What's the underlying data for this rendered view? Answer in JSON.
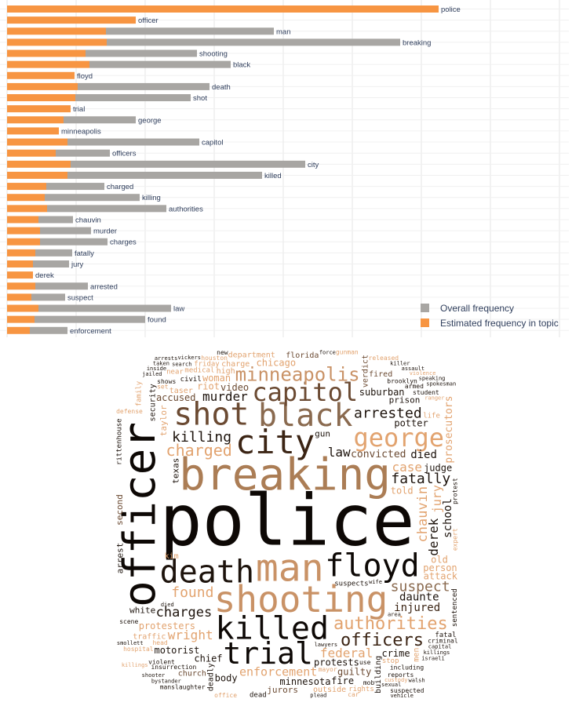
{
  "chart_data": [
    {
      "type": "bar",
      "orientation": "horizontal",
      "stacked": "overlay",
      "grid": true,
      "legend_position": "bottom-right",
      "categories": [
        "police",
        "officer",
        "man",
        "breaking",
        "shooting",
        "black",
        "floyd",
        "death",
        "shot",
        "trial",
        "george",
        "minneapolis",
        "capitol",
        "officers",
        "city",
        "killed",
        "charged",
        "killing",
        "authorities",
        "chauvin",
        "murder",
        "charges",
        "fatally",
        "jury",
        "derek",
        "arrested",
        "suspect",
        "law",
        "found",
        "enforcement"
      ],
      "series": [
        {
          "name": "Overall frequency",
          "color": "#a8a6a3",
          "values": [
            0,
            0,
            214,
            374,
            142,
            180,
            0,
            168,
            147,
            0,
            92,
            0,
            168,
            69,
            299,
            248,
            74,
            121,
            152,
            44,
            65,
            86,
            47,
            46,
            0,
            67,
            43,
            169,
            141,
            48
          ]
        },
        {
          "name": "Estimated frequency in topic",
          "color": "#f79542",
          "values": [
            550,
            164,
            126,
            127,
            100,
            105,
            86,
            90,
            87,
            81,
            72,
            66,
            77,
            62,
            81,
            77,
            50,
            48,
            51,
            40,
            42,
            42,
            36,
            33,
            33,
            36,
            31,
            40,
            35,
            29
          ]
        }
      ]
    },
    {
      "type": "wordcloud",
      "colors": [
        "#0d0805",
        "#3b2414",
        "#6b4a32",
        "#8a6a4f",
        "#ab7d55",
        "#c99266",
        "#e2a36f",
        "#f0b07a"
      ],
      "words": [
        {
          "text": "police",
          "size": 90,
          "color": "#0d0805"
        },
        {
          "text": "breaking",
          "size": 56,
          "color": "#ab7d55"
        },
        {
          "text": "officer",
          "size": 56,
          "color": "#0d0805",
          "rotate": true
        },
        {
          "text": "man",
          "size": 48,
          "color": "#c99266"
        },
        {
          "text": "shooting",
          "size": 46,
          "color": "#c99266"
        },
        {
          "text": "city",
          "size": 42,
          "color": "#3b2414"
        },
        {
          "text": "death",
          "size": 40,
          "color": "#1d130c"
        },
        {
          "text": "floyd",
          "size": 40,
          "color": "#0d0805"
        },
        {
          "text": "killed",
          "size": 40,
          "color": "#0d0805"
        },
        {
          "text": "black",
          "size": 40,
          "color": "#8a6a4f"
        },
        {
          "text": "shot",
          "size": 40,
          "color": "#6b4a32"
        },
        {
          "text": "trial",
          "size": 38,
          "color": "#0d0805"
        },
        {
          "text": "capitol",
          "size": 32,
          "color": "#6b4a32"
        },
        {
          "text": "george",
          "size": 32,
          "color": "#e2a36f"
        },
        {
          "text": "minneapolis",
          "size": 24,
          "color": "#c99266"
        },
        {
          "text": "authorities",
          "size": 22,
          "color": "#e2a36f"
        },
        {
          "text": "officers",
          "size": 22,
          "color": "#3b2414"
        },
        {
          "text": "charged",
          "size": 20,
          "color": "#e2a36f"
        },
        {
          "text": "arrested",
          "size": 18,
          "color": "#1d130c"
        },
        {
          "text": "killing",
          "size": 18,
          "color": "#1d130c"
        },
        {
          "text": "fatally",
          "size": 18,
          "color": "#1d130c"
        },
        {
          "text": "found",
          "size": 18,
          "color": "#e2a36f"
        },
        {
          "text": "suspect",
          "size": 18,
          "color": "#8a6a4f"
        },
        {
          "text": "charges",
          "size": 17,
          "color": "#1d130c"
        },
        {
          "text": "chauvin",
          "size": 17,
          "color": "#e2a36f",
          "rotate": true
        },
        {
          "text": "murder",
          "size": 16,
          "color": "#1d130c"
        },
        {
          "text": "enforcement",
          "size": 15,
          "color": "#e2a36f"
        },
        {
          "text": "federal",
          "size": 16,
          "color": "#e2a36f"
        },
        {
          "text": "wright",
          "size": 16,
          "color": "#e2a36f"
        },
        {
          "text": "law",
          "size": 16,
          "color": "#1d130c"
        },
        {
          "text": "case",
          "size": 16,
          "color": "#e2a36f"
        },
        {
          "text": "derek",
          "size": 16,
          "color": "#1d130c",
          "rotate": true
        },
        {
          "text": "jury",
          "size": 15,
          "color": "#e2a36f",
          "rotate": true
        },
        {
          "text": "daunte",
          "size": 14,
          "color": "#1d130c"
        },
        {
          "text": "school",
          "size": 14,
          "color": "#1d130c",
          "rotate": true
        },
        {
          "text": "died",
          "size": 14,
          "color": "#1d130c"
        },
        {
          "text": "injured",
          "size": 14,
          "color": "#3b2414"
        },
        {
          "text": "convicted",
          "size": 13,
          "color": "#6b4a32"
        },
        {
          "text": "prosecutors",
          "size": 13,
          "color": "#e2a36f",
          "rotate": true
        },
        {
          "text": "protesters",
          "size": 12,
          "color": "#e2a36f"
        },
        {
          "text": "protests",
          "size": 12,
          "color": "#1d130c"
        },
        {
          "text": "video",
          "size": 12,
          "color": "#6b4a32"
        },
        {
          "text": "told",
          "size": 12,
          "color": "#e2a36f"
        },
        {
          "text": "old",
          "size": 12,
          "color": "#e2a36f"
        },
        {
          "text": "person",
          "size": 12,
          "color": "#e2a36f"
        },
        {
          "text": "judge",
          "size": 12,
          "color": "#1d130c"
        },
        {
          "text": "chief",
          "size": 12,
          "color": "#1d130c"
        },
        {
          "text": "potter",
          "size": 12,
          "color": "#1d130c"
        },
        {
          "text": "minnesota",
          "size": 12,
          "color": "#1d130c"
        },
        {
          "text": "suburban",
          "size": 12,
          "color": "#1d130c"
        },
        {
          "text": "attack",
          "size": 12,
          "color": "#e2a36f"
        },
        {
          "text": "woman",
          "size": 12,
          "color": "#e2a36f"
        },
        {
          "text": "chicago",
          "size": 12,
          "color": "#e2a36f"
        },
        {
          "text": "guilty",
          "size": 12,
          "color": "#6b4a32"
        },
        {
          "text": "riot",
          "size": 12,
          "color": "#e2a36f"
        },
        {
          "text": "motorist",
          "size": 12,
          "color": "#1d130c"
        },
        {
          "text": "accused",
          "size": 12,
          "color": "#6b4a32"
        },
        {
          "text": "body",
          "size": 12,
          "color": "#1d130c"
        },
        {
          "text": "crime",
          "size": 12,
          "color": "#1d130c"
        },
        {
          "text": "fire",
          "size": 12,
          "color": "#1d130c"
        },
        {
          "text": "texas",
          "size": 11,
          "color": "#1d130c",
          "rotate": true
        },
        {
          "text": "taylor",
          "size": 11,
          "color": "#e2a36f",
          "rotate": true
        },
        {
          "text": "jurors",
          "size": 11,
          "color": "#6b4a32"
        },
        {
          "text": "second",
          "size": 11,
          "color": "#6b4a32",
          "rotate": true
        },
        {
          "text": "prison",
          "size": 11,
          "color": "#1d130c"
        },
        {
          "text": "white",
          "size": 11,
          "color": "#1d130c"
        },
        {
          "text": "arrest",
          "size": 11,
          "color": "#1d130c",
          "rotate": true
        },
        {
          "text": "verdict",
          "size": 10,
          "color": "#6b4a32",
          "rotate": true
        },
        {
          "text": "deadly",
          "size": 10,
          "color": "#1d130c",
          "rotate": true
        },
        {
          "text": "building",
          "size": 10,
          "color": "#1d130c",
          "rotate": true
        },
        {
          "text": "security",
          "size": 10,
          "color": "#1d130c",
          "rotate": true
        },
        {
          "text": "gun",
          "size": 11,
          "color": "#1d130c"
        },
        {
          "text": "taser",
          "size": 10,
          "color": "#e2a36f"
        },
        {
          "text": "charge",
          "size": 10,
          "color": "#e2a36f"
        },
        {
          "text": "florida",
          "size": 10,
          "color": "#6b4a32"
        },
        {
          "text": "outside",
          "size": 10,
          "color": "#e2a36f"
        },
        {
          "text": "department",
          "size": 10,
          "color": "#e2a36f"
        },
        {
          "text": "kim",
          "size": 10,
          "color": "#e2a36f"
        },
        {
          "text": "traffic",
          "size": 10,
          "color": "#e2a36f"
        },
        {
          "text": "church",
          "size": 10,
          "color": "#6b4a32"
        },
        {
          "text": "fired",
          "size": 10,
          "color": "#6b4a32"
        },
        {
          "text": "high",
          "size": 10,
          "color": "#e2a36f"
        },
        {
          "text": "suspects",
          "size": 9,
          "color": "#1d130c"
        },
        {
          "text": "medical",
          "size": 9,
          "color": "#e2a36f"
        },
        {
          "text": "rittenhouse",
          "size": 9,
          "color": "#1d130c",
          "rotate": true
        },
        {
          "text": "sentenced",
          "size": 9,
          "color": "#1d130c",
          "rotate": true
        },
        {
          "text": "insurrection",
          "size": 8,
          "color": "#1d130c"
        },
        {
          "text": "friday",
          "size": 9,
          "color": "#e2a36f"
        },
        {
          "text": "civil",
          "size": 9,
          "color": "#1d130c"
        },
        {
          "text": "stop",
          "size": 9,
          "color": "#e2a36f"
        },
        {
          "text": "dead",
          "size": 9,
          "color": "#1d130c"
        },
        {
          "text": "life",
          "size": 9,
          "color": "#e2a36f"
        },
        {
          "text": "mayor",
          "size": 8,
          "color": "#e2a36f"
        },
        {
          "text": "rights",
          "size": 9,
          "color": "#e2a36f"
        },
        {
          "text": "houston",
          "size": 8,
          "color": "#e2a36f"
        },
        {
          "text": "brooklyn",
          "size": 8,
          "color": "#1d130c"
        },
        {
          "text": "gunman",
          "size": 8,
          "color": "#e2a36f"
        },
        {
          "text": "scene",
          "size": 8,
          "color": "#1d130c"
        },
        {
          "text": "office",
          "size": 8,
          "color": "#e2a36f"
        },
        {
          "text": "violent",
          "size": 8,
          "color": "#1d130c"
        },
        {
          "text": "including",
          "size": 8,
          "color": "#1d130c"
        },
        {
          "text": "shows",
          "size": 8,
          "color": "#1d130c"
        },
        {
          "text": "use",
          "size": 8,
          "color": "#1d130c"
        },
        {
          "text": "armed",
          "size": 8,
          "color": "#1d130c"
        },
        {
          "text": "manslaughter",
          "size": 8,
          "color": "#1d130c"
        },
        {
          "text": "reports",
          "size": 8,
          "color": "#1d130c"
        },
        {
          "text": "student",
          "size": 8,
          "color": "#1d130c"
        },
        {
          "text": "defense",
          "size": 8,
          "color": "#e2a36f"
        },
        {
          "text": "criminal",
          "size": 8,
          "color": "#1d130c"
        },
        {
          "text": "hospital",
          "size": 8,
          "color": "#e2a36f"
        },
        {
          "text": "lawyers",
          "size": 7,
          "color": "#1d130c"
        },
        {
          "text": "fatal",
          "size": 9,
          "color": "#1d130c"
        },
        {
          "text": "men",
          "size": 10,
          "color": "#e2a36f",
          "rotate": true
        },
        {
          "text": "head",
          "size": 8,
          "color": "#e2a36f"
        },
        {
          "text": "mob",
          "size": 8,
          "color": "#1d130c"
        },
        {
          "text": "plead",
          "size": 7,
          "color": "#1d130c"
        },
        {
          "text": "near",
          "size": 9,
          "color": "#e2a36f"
        },
        {
          "text": "family",
          "size": 9,
          "color": "#e2a36f",
          "rotate": true
        },
        {
          "text": "set",
          "size": 8,
          "color": "#e2a36f"
        },
        {
          "text": "car",
          "size": 8,
          "color": "#e2a36f"
        },
        {
          "text": "new",
          "size": 8,
          "color": "#1d130c"
        },
        {
          "text": "wife",
          "size": 7,
          "color": "#1d130c"
        },
        {
          "text": "expert",
          "size": 8,
          "color": "#e2a36f",
          "rotate": true
        },
        {
          "text": "protest",
          "size": 8,
          "color": "#1d130c",
          "rotate": true
        },
        {
          "text": "released",
          "size": 8,
          "color": "#e2a36f"
        },
        {
          "text": "custody",
          "size": 7,
          "color": "#e2a36f"
        },
        {
          "text": "search",
          "size": 7,
          "color": "#1d130c"
        },
        {
          "text": "capital",
          "size": 7,
          "color": "#1d130c"
        },
        {
          "text": "smollett",
          "size": 7,
          "color": "#1d130c"
        },
        {
          "text": "vickers",
          "size": 7,
          "color": "#1d130c"
        },
        {
          "text": "ranger",
          "size": 7,
          "color": "#e2a36f"
        },
        {
          "text": "sexual",
          "size": 7,
          "color": "#1d130c"
        },
        {
          "text": "killings",
          "size": 7,
          "color": "#1d130c"
        },
        {
          "text": "killer",
          "size": 7,
          "color": "#1d130c"
        },
        {
          "text": "bystander",
          "size": 7,
          "color": "#1d130c"
        },
        {
          "text": "israeli",
          "size": 7,
          "color": "#1d130c"
        },
        {
          "text": "assault",
          "size": 7,
          "color": "#1d130c"
        },
        {
          "text": "area",
          "size": 7,
          "color": "#1d130c"
        },
        {
          "text": "jailed",
          "size": 7,
          "color": "#1d130c"
        },
        {
          "text": "died",
          "size": 7,
          "color": "#1d130c"
        },
        {
          "text": "force",
          "size": 7,
          "color": "#1d130c"
        },
        {
          "text": "shooter",
          "size": 7,
          "color": "#1d130c"
        },
        {
          "text": "violence",
          "size": 7,
          "color": "#e2a36f"
        },
        {
          "text": "speaking",
          "size": 7,
          "color": "#1d130c"
        },
        {
          "text": "inside",
          "size": 7,
          "color": "#1d130c"
        },
        {
          "text": "suspected",
          "size": 8,
          "color": "#1d130c"
        },
        {
          "text": "killings",
          "size": 7,
          "color": "#e2a36f"
        },
        {
          "text": "spokesman",
          "size": 7,
          "color": "#1d130c"
        },
        {
          "text": "walsh",
          "size": 7,
          "color": "#1d130c"
        },
        {
          "text": "taken",
          "size": 7,
          "color": "#1d130c"
        },
        {
          "text": "arrests",
          "size": 7,
          "color": "#1d130c"
        },
        {
          "text": "vehicle",
          "size": 7,
          "color": "#1d130c"
        }
      ]
    }
  ]
}
